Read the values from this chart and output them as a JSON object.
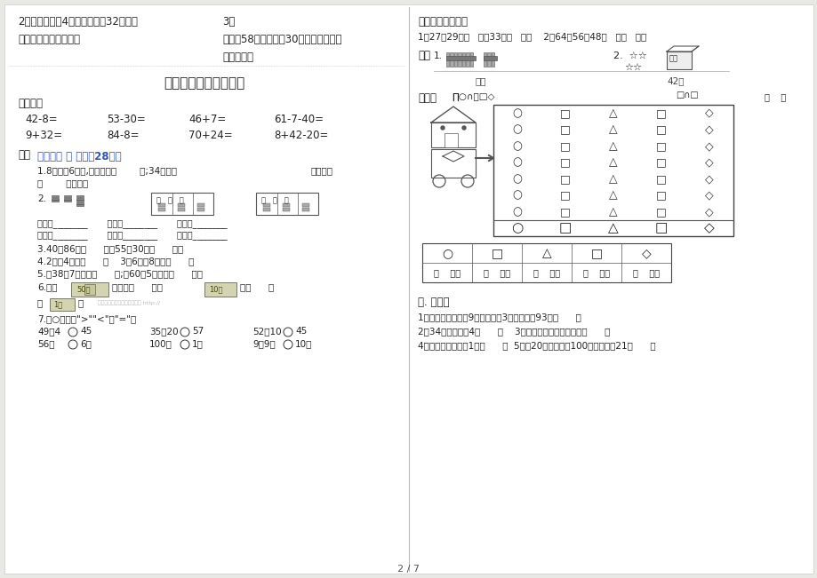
{
  "bg_color": "#e8e8e4",
  "page_bg": "#ffffff",
  "title": "一年级数学期末复习二",
  "page_num": "2 / 7",
  "left_top": [
    [
      "2、班里转走了4名学生；还剩32名；班",
      "3、"
    ],
    [
      "里原来有多少名学生？",
      "爸爸有58元；妈妈有30元；爸爸比妈妈"
    ],
    [
      "",
      "各多少元？"
    ]
  ],
  "calc_rows": [
    [
      "42-8=",
      "53-30=",
      "46+7=",
      "61-7-40="
    ],
    [
      "9+32=",
      "84-8=",
      "70+24=",
      "8+42-20="
    ]
  ],
  "fillblank_header": "一、仔细 填 空。（28分）",
  "section3_items": "1、27、29、（   ）、33、（   ）。    2、64、56、48（   ）（   ）。",
  "section6_items": [
    "1、一个数个位上是9；十位上是3；这个数是93。（      ）",
    "2、34读作：三十4（      ）    3、读数和写数都从高位起（      ）",
    "4、最小的两位数是1。（      ）  5、比20大得多；比100小的多数是21（      ）"
  ],
  "shape_cols": [
    "○",
    "□",
    "△",
    "□",
    "◇"
  ],
  "shape_rows": 7,
  "count_row": [
    "（    ）个",
    "（    ）个",
    "（    ）个",
    "（    ）个",
    "（    ）个"
  ]
}
